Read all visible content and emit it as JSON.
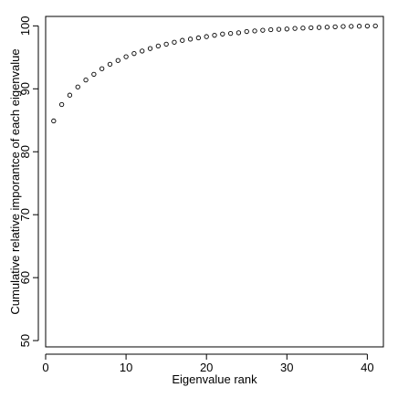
{
  "chart_data": {
    "type": "scatter",
    "title": "",
    "xlabel": "Eigenvalue rank",
    "ylabel": "Cumulative relative imporantce of each eigenvalue",
    "xlim": [
      0,
      42
    ],
    "ylim": [
      49,
      101.5
    ],
    "xticks": [
      "0",
      "10",
      "20",
      "30",
      "40"
    ],
    "yticks": [
      "50",
      "60",
      "70",
      "80",
      "90",
      "100"
    ],
    "grid": false,
    "legend": "none",
    "marker": "open-circle",
    "colors": {
      "marker": "#000000",
      "axis": "#000000",
      "background": "#ffffff"
    },
    "x": [
      1,
      2,
      3,
      4,
      5,
      6,
      7,
      8,
      9,
      10,
      11,
      12,
      13,
      14,
      15,
      16,
      17,
      18,
      19,
      20,
      21,
      22,
      23,
      24,
      25,
      26,
      27,
      28,
      29,
      30,
      31,
      32,
      33,
      34,
      35,
      36,
      37,
      38,
      39,
      40,
      41
    ],
    "y": [
      84.9,
      87.5,
      89.0,
      90.3,
      91.4,
      92.3,
      93.2,
      93.9,
      94.5,
      95.1,
      95.6,
      96.0,
      96.4,
      96.8,
      97.1,
      97.4,
      97.7,
      97.9,
      98.1,
      98.3,
      98.5,
      98.7,
      98.8,
      98.9,
      99.1,
      99.2,
      99.3,
      99.4,
      99.45,
      99.5,
      99.6,
      99.65,
      99.7,
      99.75,
      99.8,
      99.85,
      99.9,
      99.92,
      99.95,
      99.97,
      100.0
    ]
  }
}
